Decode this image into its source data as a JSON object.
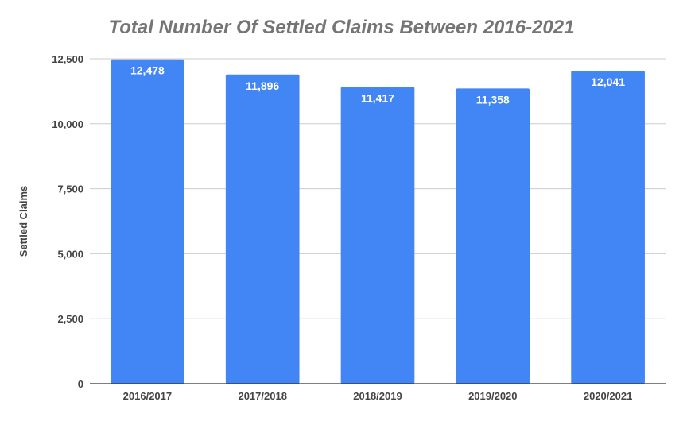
{
  "chart_data": {
    "type": "bar",
    "title": "Total Number Of Settled Claims Between 2016-2021",
    "xlabel": "",
    "ylabel": "Settled Claims",
    "categories": [
      "2016/2017",
      "2017/2018",
      "2018/2019",
      "2019/2020",
      "2020/2021"
    ],
    "values": [
      12478,
      11896,
      11417,
      11358,
      12041
    ],
    "data_labels": [
      "12,478",
      "11,896",
      "11,417",
      "11,358",
      "12,041"
    ],
    "ylim": [
      0,
      12500
    ],
    "yticks": [
      0,
      2500,
      5000,
      7500,
      10000,
      12500
    ],
    "ytick_labels": [
      "0",
      "2,500",
      "5,000",
      "7,500",
      "10,000",
      "12,500"
    ],
    "grid": true,
    "legend": "none",
    "bar_color": "#4285f4",
    "grid_color": "#cccccc",
    "axis_color": "#333333",
    "title_color": "#757575"
  }
}
